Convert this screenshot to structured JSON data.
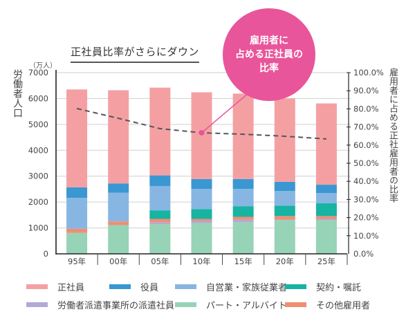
{
  "header": {
    "title": "正社員比率がさらにダウン",
    "unit": "（万人）",
    "ylabel_left": "労働者人口",
    "ylabel_right": "雇用者に占める正社雇用者の比率",
    "callout_lines": [
      "雇用者に",
      "占める正社員の",
      "比率"
    ]
  },
  "colors": {
    "regular": "#f4a0a3",
    "executive": "#3a97d2",
    "self_employed": "#87b6e3",
    "contract": "#17b3a3",
    "dispatch": "#b3a9d6",
    "part_time": "#97d3b7",
    "other": "#ef8f72",
    "ratio_line": "#555555",
    "callout": "#e8559a"
  },
  "legend": [
    {
      "key": "regular",
      "label": "正社員"
    },
    {
      "key": "executive",
      "label": "役員"
    },
    {
      "key": "self_employed",
      "label": "自営業・家族従業者"
    },
    {
      "key": "contract",
      "label": "契約・嘱託"
    },
    {
      "key": "dispatch",
      "label": "労働者派遣事業所の派遣社員"
    },
    {
      "key": "part_time",
      "label": "パート・アルバイト"
    },
    {
      "key": "other",
      "label": "その他雇用者"
    }
  ],
  "chart_data": {
    "type": "bar",
    "stacked": true,
    "title": "正社員比率がさらにダウン",
    "xlabel": "",
    "ylabel": "労働者人口（万人）",
    "ylabel_right": "雇用者に占める正社雇用者の比率",
    "categories": [
      "95年",
      "00年",
      "05年",
      "10年",
      "15年",
      "20年",
      "25年"
    ],
    "ylim": [
      0,
      7000
    ],
    "yticks": [
      0,
      1000,
      2000,
      3000,
      4000,
      5000,
      6000,
      7000
    ],
    "y2lim": [
      0,
      100
    ],
    "y2ticks": [
      "0.0%",
      "10.0%",
      "20.0%",
      "30.0%",
      "40.0%",
      "50.0%",
      "60.0%",
      "70.0%",
      "80.0%",
      "90.0%",
      "100.0%"
    ],
    "grid": true,
    "legend_position": "bottom",
    "series": [
      {
        "key": "part_time",
        "name": "パート・アルバイト",
        "values": [
          810,
          1110,
          1140,
          1190,
          1220,
          1300,
          1300
        ]
      },
      {
        "key": "dispatch",
        "name": "労働者派遣事業所の派遣社員",
        "values": [
          0,
          0,
          80,
          80,
          100,
          20,
          50
        ]
      },
      {
        "key": "other",
        "name": "その他雇用者",
        "values": [
          160,
          140,
          130,
          80,
          110,
          140,
          110
        ]
      },
      {
        "key": "contract",
        "name": "契約・嘱託",
        "values": [
          0,
          0,
          330,
          380,
          410,
          400,
          490
        ]
      },
      {
        "key": "self_employed",
        "name": "自営業・家族従業者",
        "values": [
          1190,
          1110,
          940,
          780,
          670,
          570,
          400
        ]
      },
      {
        "key": "executive",
        "name": "役員",
        "values": [
          410,
          360,
          410,
          380,
          380,
          350,
          320
        ]
      },
      {
        "key": "regular",
        "name": "正社員",
        "values": [
          3780,
          3600,
          3390,
          3350,
          3300,
          3220,
          3140
        ]
      }
    ],
    "line_series": {
      "name": "雇用者に占める正社員の比率",
      "axis": "right",
      "style": "dashed",
      "unit": "%",
      "values": [
        80.2,
        74.8,
        69.1,
        66.8,
        66.0,
        64.9,
        63.4
      ]
    }
  }
}
